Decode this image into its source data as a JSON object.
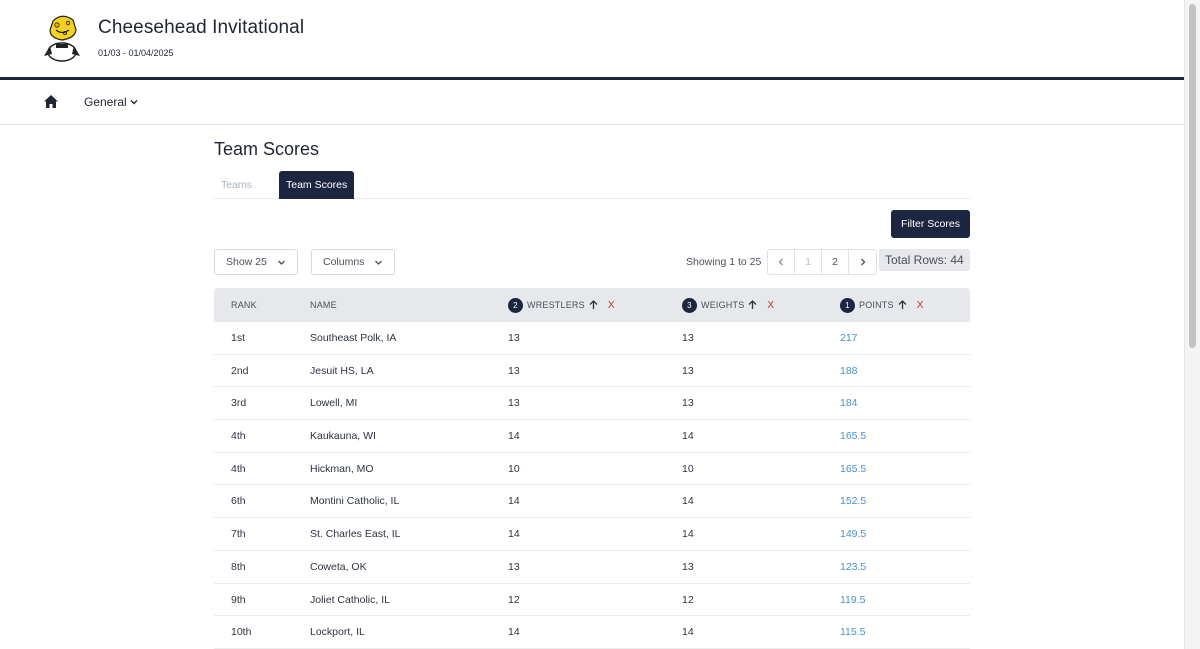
{
  "header": {
    "title": "Cheesehead Invitational",
    "dates": "01/03 - 01/04/2025"
  },
  "nav": {
    "general_label": "General"
  },
  "page": {
    "title": "Team Scores"
  },
  "tabs": [
    {
      "label": "Teams",
      "active": false
    },
    {
      "label": "Team Scores",
      "active": true
    }
  ],
  "toolbar": {
    "filter_label": "Filter Scores",
    "show_label": "Show 25",
    "columns_label": "Columns",
    "showing_text": "Showing 1 to 25",
    "pages": [
      "1",
      "2"
    ],
    "total_rows": "Total Rows: 44"
  },
  "table": {
    "columns": {
      "rank": "RANK",
      "name": "NAME",
      "wrestlers": "WRESTLERS",
      "weights": "WEIGHTS",
      "points": "POINTS"
    },
    "sort_order": {
      "wrestlers": "2",
      "weights": "3",
      "points": "1"
    },
    "remove_label": "X",
    "rows": [
      {
        "rank": "1st",
        "name": "Southeast Polk, IA",
        "wrestlers": "13",
        "weights": "13",
        "points": "217"
      },
      {
        "rank": "2nd",
        "name": "Jesuit HS, LA",
        "wrestlers": "13",
        "weights": "13",
        "points": "188"
      },
      {
        "rank": "3rd",
        "name": "Lowell, MI",
        "wrestlers": "13",
        "weights": "13",
        "points": "184"
      },
      {
        "rank": "4th",
        "name": "Kaukauna, WI",
        "wrestlers": "14",
        "weights": "14",
        "points": "165.5"
      },
      {
        "rank": "4th",
        "name": "Hickman, MO",
        "wrestlers": "10",
        "weights": "10",
        "points": "165.5"
      },
      {
        "rank": "6th",
        "name": "Montini Catholic, IL",
        "wrestlers": "14",
        "weights": "14",
        "points": "152.5"
      },
      {
        "rank": "7th",
        "name": "St. Charles East, IL",
        "wrestlers": "14",
        "weights": "14",
        "points": "149.5"
      },
      {
        "rank": "8th",
        "name": "Coweta, OK",
        "wrestlers": "13",
        "weights": "13",
        "points": "123.5"
      },
      {
        "rank": "9th",
        "name": "Joliet Catholic, IL",
        "wrestlers": "12",
        "weights": "12",
        "points": "119.5"
      },
      {
        "rank": "10th",
        "name": "Lockport, IL",
        "wrestlers": "14",
        "weights": "14",
        "points": "115.5"
      }
    ]
  },
  "colors": {
    "primary": "#1c2640",
    "link": "#4a90d0",
    "remove": "#c0392b"
  }
}
